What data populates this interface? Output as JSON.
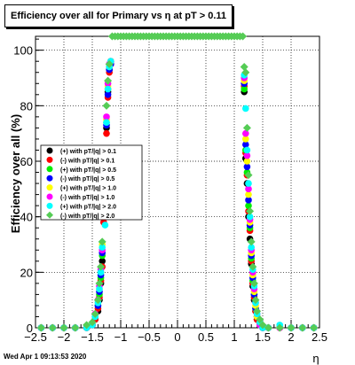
{
  "chart_data": {
    "type": "scatter",
    "title": "Efficiency over all for Primary vs   η at pT > 0.11",
    "xlabel": "η",
    "ylabel": "Efficiency over all (%)",
    "xlim": [
      -2.5,
      2.5
    ],
    "ylim": [
      0,
      105
    ],
    "xticks": [
      -2.5,
      -2,
      -1.5,
      -1,
      -0.5,
      0,
      0.5,
      1,
      1.5,
      2,
      2.5
    ],
    "xtick_labels": [
      "−2.5",
      "−2",
      "−1.5",
      "−1",
      "−0.5",
      "0",
      "0.5",
      "1",
      "1.5",
      "2",
      "2.5"
    ],
    "yticks": [
      0,
      20,
      40,
      60,
      80,
      100
    ],
    "ytick_labels": [
      "0",
      "20",
      "40",
      "60",
      "80",
      "100"
    ],
    "grid": true,
    "legend_position": "left-middle",
    "series": [
      {
        "name": "(+) with pT/|q| > 0.1",
        "color": "#000000",
        "x": [
          -2.4,
          -2.2,
          -2.0,
          -1.8,
          -1.6,
          -1.5,
          -1.45,
          -1.4,
          -1.375,
          -1.35,
          -1.325,
          -1.3,
          -1.275,
          -1.25,
          -1.225,
          -1.2,
          -1.175,
          1.175,
          1.2,
          1.225,
          1.25,
          1.275,
          1.3,
          1.325,
          1.35,
          1.375,
          1.4,
          1.45,
          1.5,
          1.6,
          1.8,
          2.0,
          2.2,
          2.4
        ],
        "y": [
          0,
          0,
          0,
          0,
          0,
          1,
          3,
          6,
          10,
          16,
          24,
          40,
          59,
          72,
          85,
          93,
          96,
          85,
          61,
          52,
          40,
          32,
          23,
          15,
          10,
          6,
          3,
          1,
          0,
          0,
          0,
          0,
          0,
          0
        ]
      },
      {
        "name": "(-) with pT/|q| > 0.1",
        "color": "#ff0000",
        "x": [
          -2.4,
          -2.2,
          -2.0,
          -1.8,
          -1.6,
          -1.5,
          -1.45,
          -1.4,
          -1.375,
          -1.35,
          -1.325,
          -1.3,
          -1.275,
          -1.25,
          -1.225,
          -1.2,
          -1.175,
          1.175,
          1.2,
          1.225,
          1.25,
          1.275,
          1.3,
          1.325,
          1.35,
          1.375,
          1.4,
          1.45,
          1.5,
          1.6,
          1.8,
          2.0,
          2.2,
          2.4
        ],
        "y": [
          0,
          0,
          0,
          0,
          0,
          1,
          3,
          7,
          11,
          17,
          22,
          38,
          58,
          70,
          83,
          92,
          95,
          87,
          63,
          55,
          42,
          35,
          24,
          16,
          11,
          6,
          3,
          1,
          0,
          0,
          0,
          0,
          0,
          0
        ]
      },
      {
        "name": "(+) with pT/|q| > 0.5",
        "color": "#00ee00",
        "x": [
          -2.4,
          -2.2,
          -2.0,
          -1.8,
          -1.6,
          -1.5,
          -1.45,
          -1.4,
          -1.375,
          -1.35,
          -1.325,
          -1.3,
          -1.275,
          -1.25,
          -1.225,
          -1.2,
          -1.175,
          1.175,
          1.2,
          1.225,
          1.25,
          1.275,
          1.3,
          1.325,
          1.35,
          1.375,
          1.4,
          1.45,
          1.5,
          1.6,
          1.8,
          2.0,
          2.2,
          2.4
        ],
        "y": [
          0,
          0,
          0,
          0,
          0,
          1,
          4,
          8,
          12,
          18,
          26,
          42,
          60,
          74,
          86,
          94,
          96,
          86,
          64,
          56,
          44,
          36,
          25,
          17,
          12,
          7,
          4,
          1,
          0,
          0,
          0,
          0,
          0,
          0
        ]
      },
      {
        "name": "(-) with pT/|q| > 0.5",
        "color": "#0000ff",
        "x": [
          -2.4,
          -2.2,
          -2.0,
          -1.8,
          -1.6,
          -1.5,
          -1.45,
          -1.4,
          -1.375,
          -1.35,
          -1.325,
          -1.3,
          -1.275,
          -1.25,
          -1.225,
          -1.2,
          -1.175,
          1.175,
          1.2,
          1.225,
          1.25,
          1.275,
          1.3,
          1.325,
          1.35,
          1.375,
          1.4,
          1.45,
          1.5,
          1.6,
          1.8,
          2.0,
          2.2,
          2.4
        ],
        "y": [
          0,
          0,
          0,
          0,
          0,
          1,
          4,
          8,
          13,
          19,
          27,
          41,
          61,
          73,
          84,
          93,
          95,
          88,
          66,
          58,
          46,
          37,
          26,
          18,
          12,
          7,
          4,
          1,
          0,
          0,
          0,
          0,
          0,
          0
        ]
      },
      {
        "name": "(+) with pT/|q| > 1.0",
        "color": "#ffff00",
        "x": [
          -2.4,
          -2.2,
          -2.0,
          -1.8,
          -1.6,
          -1.5,
          -1.45,
          -1.4,
          -1.375,
          -1.35,
          -1.325,
          -1.3,
          -1.275,
          -1.25,
          -1.225,
          -1.2,
          -1.175,
          1.175,
          1.2,
          1.225,
          1.25,
          1.275,
          1.3,
          1.325,
          1.35,
          1.375,
          1.4,
          1.45,
          1.5,
          1.6,
          1.8,
          2.0,
          2.2,
          2.4
        ],
        "y": [
          0,
          0,
          0,
          0,
          0,
          1,
          4,
          9,
          14,
          20,
          30,
          44,
          62,
          75,
          87,
          94,
          96,
          89,
          68,
          60,
          48,
          38,
          27,
          19,
          13,
          8,
          4,
          1,
          0,
          0,
          0,
          0,
          0,
          0
        ]
      },
      {
        "name": "(-) with pT/|q| > 1.0",
        "color": "#ff00ff",
        "x": [
          -2.4,
          -2.2,
          -2.0,
          -1.8,
          -1.6,
          -1.5,
          -1.45,
          -1.4,
          -1.375,
          -1.35,
          -1.325,
          -1.3,
          -1.275,
          -1.25,
          -1.225,
          -1.2,
          -1.175,
          1.175,
          1.2,
          1.225,
          1.25,
          1.275,
          1.3,
          1.325,
          1.35,
          1.375,
          1.4,
          1.45,
          1.5,
          1.6,
          1.8,
          2.0,
          2.2,
          2.4
        ],
        "y": [
          0,
          0,
          0,
          0,
          0,
          1,
          5,
          10,
          15,
          21,
          28,
          45,
          63,
          76,
          88,
          95,
          96,
          90,
          70,
          62,
          50,
          39,
          28,
          20,
          14,
          9,
          5,
          1,
          0,
          0,
          0,
          0,
          0,
          0
        ]
      },
      {
        "name": "(+) with pT/|q| > 2.0",
        "color": "#00ffff",
        "x": [
          -2.4,
          -2.2,
          -2.0,
          -1.8,
          -1.6,
          -1.5,
          -1.45,
          -1.4,
          -1.375,
          -1.35,
          -1.325,
          -1.3,
          -1.275,
          -1.25,
          -1.225,
          -1.2,
          -1.175,
          1.175,
          1.2,
          1.225,
          1.25,
          1.275,
          1.3,
          1.325,
          1.35,
          1.375,
          1.4,
          1.45,
          1.5,
          1.6,
          1.8,
          2.0,
          2.2,
          2.4
        ],
        "y": [
          0,
          0,
          0,
          0,
          0,
          1,
          4,
          9,
          14,
          20,
          29,
          43,
          37,
          74,
          86,
          94,
          96,
          91,
          79,
          64,
          52,
          40,
          29,
          21,
          15,
          9,
          5,
          2,
          0,
          0,
          1,
          0,
          0,
          0
        ]
      },
      {
        "name": "(-) with pT/|q| > 2.0",
        "color": "#55cc55",
        "x": [
          -2.4,
          -2.2,
          -2.0,
          -1.8,
          -1.6,
          -1.5,
          -1.45,
          -1.4,
          -1.375,
          -1.35,
          -1.325,
          -1.3,
          -1.275,
          -1.25,
          -1.225,
          -1.2,
          -1.15,
          -1.1,
          -1.05,
          -1.0,
          -0.95,
          -0.9,
          -0.85,
          -0.8,
          -0.75,
          -0.7,
          -0.65,
          -0.6,
          -0.55,
          -0.5,
          -0.45,
          -0.4,
          -0.35,
          -0.3,
          -0.25,
          -0.2,
          -0.15,
          -0.1,
          -0.05,
          0.0,
          0.05,
          0.1,
          0.15,
          0.2,
          0.25,
          0.3,
          0.35,
          0.4,
          0.45,
          0.5,
          0.55,
          0.6,
          0.65,
          0.7,
          0.75,
          0.8,
          0.85,
          0.9,
          0.95,
          1.0,
          1.05,
          1.1,
          1.15,
          1.175,
          1.2,
          1.225,
          1.25,
          1.275,
          1.3,
          1.325,
          1.35,
          1.375,
          1.4,
          1.45,
          1.5,
          1.6,
          1.8,
          2.0,
          2.2,
          2.4
        ],
        "y": [
          0,
          0,
          0,
          0,
          1,
          2,
          5,
          10,
          16,
          22,
          31,
          46,
          64,
          80,
          89,
          95,
          105,
          105,
          105,
          105,
          105,
          105,
          105,
          105,
          105,
          105,
          105,
          105,
          105,
          105,
          105,
          105,
          105,
          105,
          105,
          105,
          105,
          105,
          105,
          105,
          105,
          105,
          105,
          105,
          105,
          105,
          105,
          105,
          105,
          105,
          105,
          105,
          105,
          105,
          105,
          105,
          105,
          105,
          105,
          105,
          105,
          105,
          105,
          94,
          92,
          72,
          55,
          42,
          31,
          22,
          16,
          10,
          6,
          3,
          1,
          0,
          0,
          0,
          0,
          0
        ]
      }
    ]
  },
  "footer": {
    "timestamp": "Wed Apr  1 09:13:53 2020"
  }
}
